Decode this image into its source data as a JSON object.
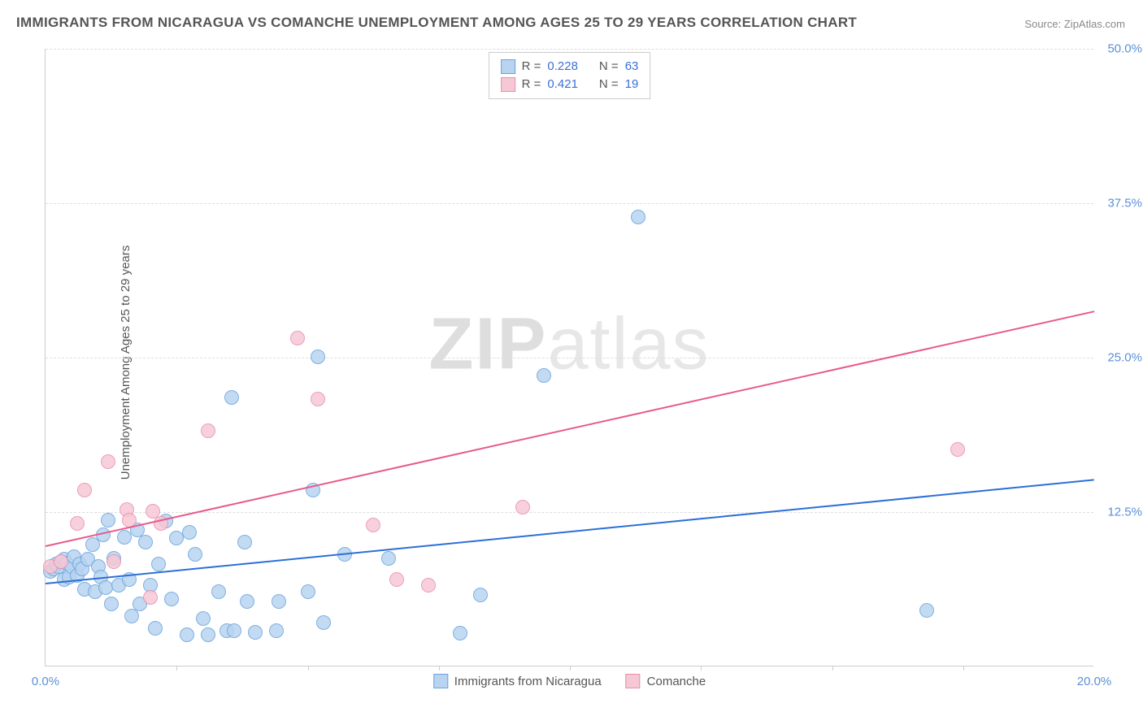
{
  "title": "IMMIGRANTS FROM NICARAGUA VS COMANCHE UNEMPLOYMENT AMONG AGES 25 TO 29 YEARS CORRELATION CHART",
  "source_label": "Source:",
  "source_name": "ZipAtlas.com",
  "ylabel": "Unemployment Among Ages 25 to 29 years",
  "watermark_bold": "ZIP",
  "watermark_light": "atlas",
  "chart": {
    "type": "scatter",
    "xlim": [
      0,
      20
    ],
    "ylim": [
      0,
      50
    ],
    "xtick_labels": [
      "0.0%",
      "20.0%"
    ],
    "xtick_positions": [
      0,
      20
    ],
    "xtick_minor": [
      2.5,
      5,
      7.5,
      10,
      12.5,
      15,
      17.5
    ],
    "ytick_labels": [
      "12.5%",
      "25.0%",
      "37.5%",
      "50.0%"
    ],
    "ytick_positions": [
      12.5,
      25,
      37.5,
      50
    ],
    "grid_color": "#dddddd",
    "axis_color": "#cccccc",
    "background_color": "#ffffff",
    "tick_label_color": "#5b8fd6",
    "point_radius": 9,
    "series": [
      {
        "name": "Immigrants from Nicaragua",
        "fill": "#b8d4f0",
        "stroke": "#6aa3de",
        "trend_color": "#2d6fd6",
        "R": "0.228",
        "N": "63",
        "trend": {
          "x0": 0,
          "y0": 6.8,
          "x1": 20,
          "y1": 15.2
        },
        "points": [
          [
            0.1,
            7.6
          ],
          [
            0.15,
            7.8
          ],
          [
            0.2,
            8.2
          ],
          [
            0.25,
            8.0
          ],
          [
            0.3,
            8.4
          ],
          [
            0.35,
            7.0
          ],
          [
            0.35,
            8.6
          ],
          [
            0.4,
            8.3
          ],
          [
            0.45,
            7.2
          ],
          [
            0.5,
            8.0
          ],
          [
            0.55,
            8.8
          ],
          [
            0.6,
            7.3
          ],
          [
            0.65,
            8.2
          ],
          [
            0.7,
            7.8
          ],
          [
            0.75,
            6.2
          ],
          [
            0.8,
            8.6
          ],
          [
            0.9,
            9.8
          ],
          [
            0.95,
            6.0
          ],
          [
            1.0,
            8.0
          ],
          [
            1.05,
            7.2
          ],
          [
            1.1,
            10.6
          ],
          [
            1.15,
            6.3
          ],
          [
            1.2,
            11.8
          ],
          [
            1.25,
            5.0
          ],
          [
            1.3,
            8.7
          ],
          [
            1.4,
            6.5
          ],
          [
            1.5,
            10.4
          ],
          [
            1.6,
            7.0
          ],
          [
            1.65,
            4.0
          ],
          [
            1.75,
            11.0
          ],
          [
            1.8,
            5.0
          ],
          [
            1.9,
            10.0
          ],
          [
            2.0,
            6.5
          ],
          [
            2.1,
            3.0
          ],
          [
            2.15,
            8.2
          ],
          [
            2.3,
            11.7
          ],
          [
            2.4,
            5.4
          ],
          [
            2.5,
            10.3
          ],
          [
            2.7,
            2.5
          ],
          [
            2.75,
            10.8
          ],
          [
            2.85,
            9.0
          ],
          [
            3.0,
            3.8
          ],
          [
            3.1,
            2.5
          ],
          [
            3.3,
            6.0
          ],
          [
            3.45,
            2.8
          ],
          [
            3.55,
            21.7
          ],
          [
            3.6,
            2.8
          ],
          [
            3.8,
            10.0
          ],
          [
            3.85,
            5.2
          ],
          [
            4.0,
            2.7
          ],
          [
            4.4,
            2.8
          ],
          [
            4.45,
            5.2
          ],
          [
            5.0,
            6.0
          ],
          [
            5.1,
            14.2
          ],
          [
            5.2,
            25.0
          ],
          [
            5.3,
            3.5
          ],
          [
            5.7,
            9.0
          ],
          [
            6.55,
            8.7
          ],
          [
            7.9,
            2.6
          ],
          [
            8.3,
            5.7
          ],
          [
            9.5,
            23.5
          ],
          [
            11.3,
            36.3
          ],
          [
            16.8,
            4.5
          ]
        ]
      },
      {
        "name": "Comanche",
        "fill": "#f6c8d5",
        "stroke": "#e78fb0",
        "trend_color": "#e85a8a",
        "R": "0.421",
        "N": "19",
        "trend": {
          "x0": 0,
          "y0": 9.8,
          "x1": 20,
          "y1": 28.8
        },
        "points": [
          [
            0.1,
            8.0
          ],
          [
            0.3,
            8.4
          ],
          [
            0.6,
            11.5
          ],
          [
            0.75,
            14.2
          ],
          [
            1.2,
            16.5
          ],
          [
            1.3,
            8.4
          ],
          [
            1.55,
            12.6
          ],
          [
            1.6,
            11.8
          ],
          [
            2.0,
            5.5
          ],
          [
            2.05,
            12.5
          ],
          [
            2.2,
            11.5
          ],
          [
            3.1,
            19.0
          ],
          [
            4.8,
            26.5
          ],
          [
            5.2,
            21.6
          ],
          [
            6.25,
            11.4
          ],
          [
            6.7,
            7.0
          ],
          [
            7.3,
            6.5
          ],
          [
            9.1,
            12.8
          ],
          [
            17.4,
            17.5
          ]
        ]
      }
    ]
  },
  "legend_top": {
    "r_label": "R =",
    "n_label": "N ="
  },
  "legend_bottom": [
    {
      "label": "Immigrants from Nicaragua",
      "fill": "#b8d4f0",
      "stroke": "#6aa3de"
    },
    {
      "label": "Comanche",
      "fill": "#f6c8d5",
      "stroke": "#e78fb0"
    }
  ]
}
